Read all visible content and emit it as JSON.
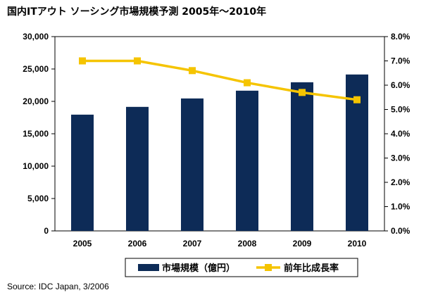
{
  "chart_data": {
    "type": "bar",
    "title": "国内ITアウト ソーシング市場規模予測 2005年～2010年",
    "categories": [
      "2005",
      "2006",
      "2007",
      "2008",
      "2009",
      "2010"
    ],
    "series": [
      {
        "name": "市場規模（億円）",
        "type": "bar",
        "axis": "left",
        "color": "#0d2b57",
        "values": [
          17950,
          19150,
          20450,
          21650,
          22950,
          24150
        ]
      },
      {
        "name": "前年比成長率",
        "type": "line",
        "axis": "right",
        "color": "#f5c400",
        "marker": "square",
        "values": [
          7.0,
          7.0,
          6.6,
          6.1,
          5.7,
          5.4
        ]
      }
    ],
    "ylim": [
      0,
      30000
    ],
    "yticks": [
      "0",
      "5,000",
      "10,000",
      "15,000",
      "20,000",
      "25,000",
      "30,000"
    ],
    "y2lim": [
      0,
      8
    ],
    "y2ticks": [
      "0.0%",
      "1.0%",
      "2.0%",
      "3.0%",
      "4.0%",
      "5.0%",
      "6.0%",
      "7.0%",
      "8.0%"
    ],
    "grid": false,
    "legend_position": "bottom"
  },
  "source": "Source: IDC Japan, 3/2006"
}
